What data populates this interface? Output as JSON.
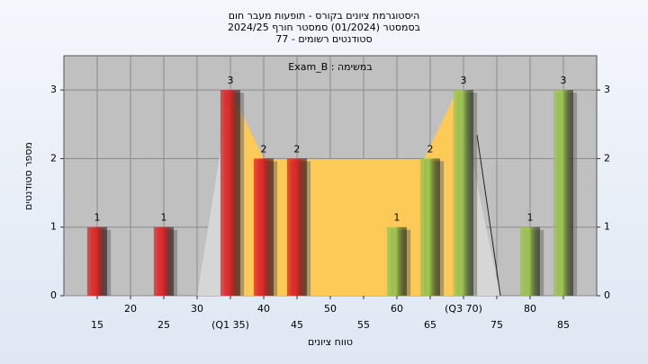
{
  "chart_data": {
    "type": "bar",
    "title": [
      "היסטוגרמת ציונים בקורס - תופעות מעבר חום",
      "בסמסטר  (01/2024)  סמסטר חורף 2024/25",
      "סטודנטים רשומים - 77"
    ],
    "annotation": "Exam_B : במשימה",
    "xlabel": "טווח ציונים",
    "ylabel": "מספר סטודנטים",
    "x": [
      15,
      25,
      35,
      40,
      45,
      60,
      65,
      70,
      80,
      85
    ],
    "values": [
      1,
      1,
      3,
      2,
      2,
      1,
      2,
      3,
      1,
      3
    ],
    "colors": [
      "#e02828",
      "#e02828",
      "#e02828",
      "#e02828",
      "#e02828",
      "#9cc450",
      "#9cc450",
      "#9cc450",
      "#9cc450",
      "#9cc450"
    ],
    "xlim": [
      10,
      90
    ],
    "xticks": [
      15,
      20,
      25,
      30,
      {
        "value": 35,
        "label": "(Q1 35)"
      },
      40,
      45,
      50,
      55,
      60,
      65,
      {
        "value": 70,
        "label": "(Q3 70)"
      },
      75,
      80,
      85
    ],
    "ylim": [
      0,
      3.5
    ],
    "yticks": [
      0,
      1,
      2,
      3
    ],
    "grid": true
  }
}
